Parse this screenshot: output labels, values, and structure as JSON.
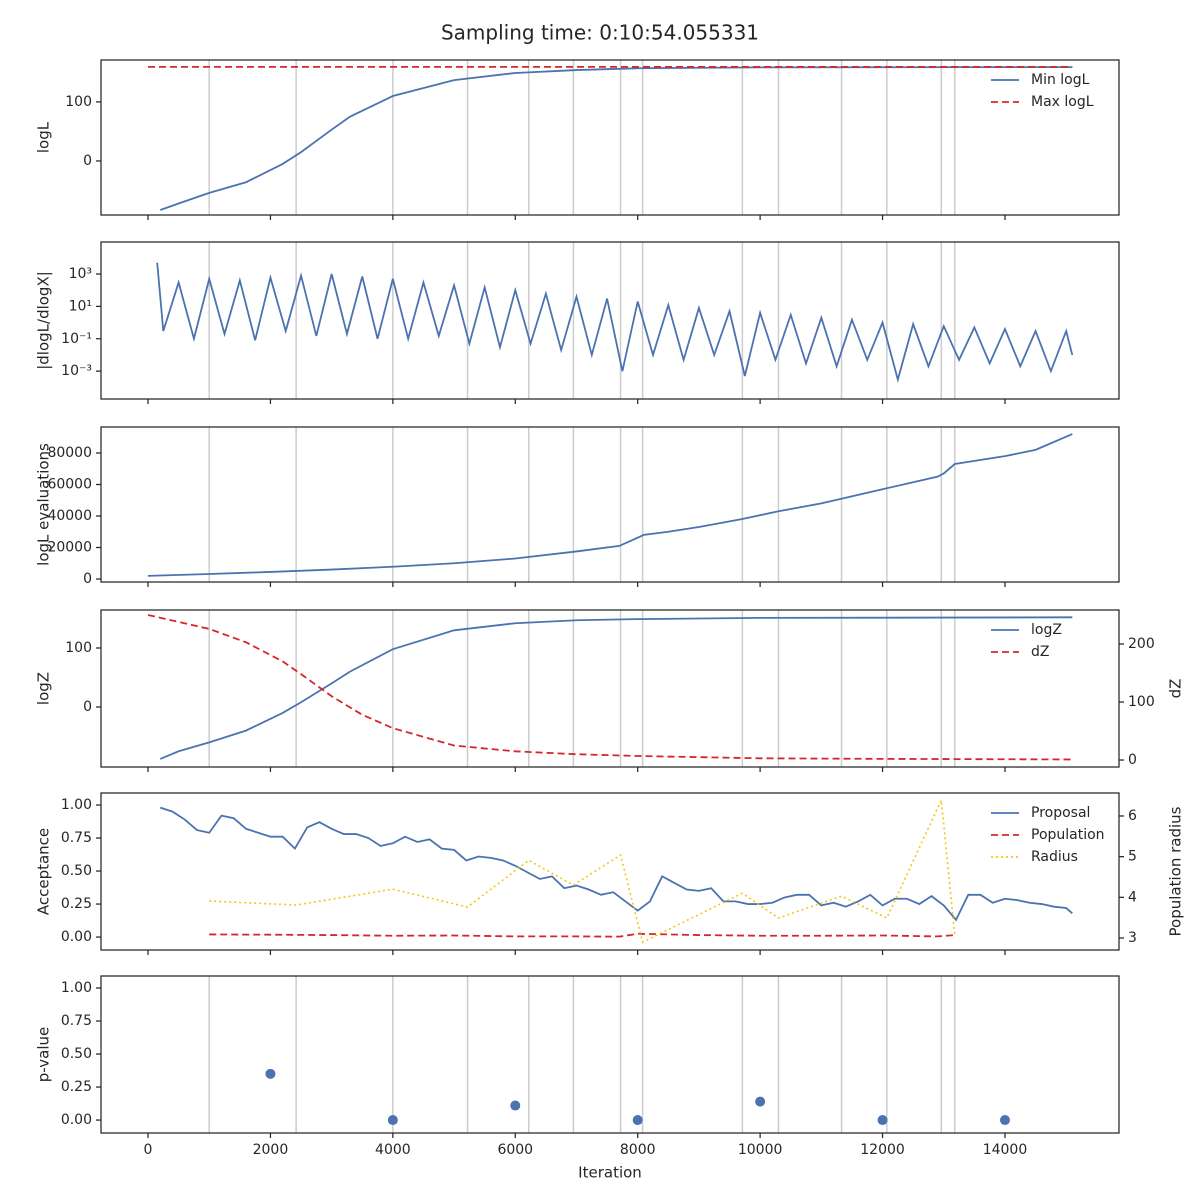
{
  "title": "Sampling time: 0:10:54.055331",
  "chart_data": [
    {
      "type": "line",
      "ylabel": "logL",
      "legend": "upper right",
      "xlim": [
        -768,
        15863
      ],
      "ylim": [
        -91.5,
        171
      ],
      "yticks": [
        0,
        100
      ],
      "vlines": [
        1000,
        2420,
        4000,
        5220,
        6220,
        6950,
        7720,
        8080,
        9710,
        10300,
        11330,
        12070,
        12960,
        13180
      ],
      "series": [
        {
          "name": "Min logL",
          "color": "#4c72b0",
          "style": "solid",
          "x": [
            200,
            500,
            1000,
            1600,
            2200,
            2500,
            3000,
            3300,
            4000,
            5000,
            6000,
            7000,
            8000,
            10000,
            15100
          ],
          "values": [
            -83,
            -72,
            -54,
            -36,
            -5,
            15,
            53,
            75,
            110,
            137,
            149,
            154,
            157,
            158.5,
            159
          ]
        },
        {
          "name": "Max logL",
          "color": "#d62728",
          "style": "dashed",
          "x": [
            0,
            15100
          ],
          "values": [
            159.3,
            159.3
          ]
        }
      ]
    },
    {
      "type": "line",
      "ylabel": "|dlogL/dlogX|",
      "log_y": true,
      "xlim": [
        -768,
        15863
      ],
      "ylim": [
        1.9e-05,
        95000
      ],
      "yticks": [
        {
          "value": 0.001,
          "label": "10⁻³"
        },
        {
          "value": 0.1,
          "label": "10⁻¹"
        },
        {
          "value": 10,
          "label": "10¹"
        },
        {
          "value": 1000,
          "label": "10³"
        }
      ],
      "vlines": [
        1000,
        2420,
        4000,
        5220,
        6220,
        6950,
        7720,
        8080,
        9710,
        10300,
        11330,
        12070,
        12960,
        13180
      ],
      "series": [
        {
          "color": "#4c72b0",
          "style": "solid",
          "x": [
            150,
            250,
            500,
            750,
            1000,
            1250,
            1500,
            1750,
            2000,
            2250,
            2500,
            2750,
            3000,
            3250,
            3500,
            3750,
            4000,
            4250,
            4500,
            4750,
            5000,
            5250,
            5500,
            5750,
            6000,
            6250,
            6500,
            6750,
            7000,
            7250,
            7500,
            7750,
            8000,
            8250,
            8500,
            8750,
            9000,
            9250,
            9500,
            9750,
            10000,
            10250,
            10500,
            10750,
            11000,
            11250,
            11500,
            11750,
            12000,
            12250,
            12500,
            12750,
            13000,
            13250,
            13500,
            13750,
            14000,
            14250,
            14500,
            14750,
            15000,
            15100
          ],
          "values": [
            5000,
            0.3,
            300,
            0.1,
            500,
            0.2,
            400,
            0.08,
            600,
            0.3,
            800,
            0.15,
            1000,
            0.2,
            700,
            0.1,
            500,
            0.1,
            300,
            0.15,
            200,
            0.05,
            150,
            0.03,
            100,
            0.05,
            60,
            0.02,
            40,
            0.01,
            30,
            0.001,
            20,
            0.01,
            12,
            0.005,
            8,
            0.01,
            5,
            0.0005,
            4,
            0.005,
            3,
            0.003,
            2,
            0.002,
            1.5,
            0.005,
            1,
            0.0003,
            0.8,
            0.002,
            0.6,
            0.005,
            0.5,
            0.003,
            0.4,
            0.002,
            0.3,
            0.001,
            0.3,
            0.01
          ]
        }
      ]
    },
    {
      "type": "line",
      "ylabel": "logL evaluations",
      "xlim": [
        -768,
        15863
      ],
      "ylim": [
        -1900,
        96500
      ],
      "yticks": [
        0,
        20000,
        40000,
        60000,
        80000
      ],
      "vlines": [
        1000,
        2420,
        4000,
        5220,
        6220,
        6950,
        7720,
        8080,
        9710,
        10300,
        11330,
        12070,
        12960,
        13180
      ],
      "series": [
        {
          "color": "#4c72b0",
          "style": "solid",
          "x": [
            0,
            1000,
            2000,
            3000,
            4000,
            5000,
            6000,
            7000,
            7700,
            7900,
            8100,
            8500,
            9000,
            9700,
            10300,
            11000,
            12000,
            12900,
            13000,
            13180,
            14000,
            14500,
            15100
          ],
          "values": [
            2000,
            3200,
            4500,
            6000,
            7800,
            10000,
            13000,
            17500,
            21000,
            24500,
            28000,
            30000,
            33000,
            38000,
            43000,
            48000,
            57000,
            65000,
            67000,
            73000,
            78000,
            82000,
            92000
          ]
        }
      ]
    },
    {
      "type": "line",
      "ylabel": "logZ",
      "y2label": "dZ",
      "legend": "upper right",
      "xlim": [
        -768,
        15863
      ],
      "ylim": [
        -101.7,
        164.4
      ],
      "yticks": [
        0,
        100
      ],
      "y2lim": [
        -12,
        258.6
      ],
      "y2ticks": [
        0,
        100,
        200
      ],
      "vlines": [
        1000,
        2420,
        4000,
        5220,
        6220,
        6950,
        7720,
        8080,
        9710,
        10300,
        11330,
        12070,
        12960,
        13180
      ],
      "series": [
        {
          "name": "logZ",
          "color": "#4c72b0",
          "style": "solid",
          "x": [
            200,
            500,
            1000,
            1600,
            2200,
            2500,
            3000,
            3300,
            4000,
            5000,
            6000,
            7000,
            8000,
            10000,
            15100
          ],
          "values": [
            -88,
            -75,
            -60,
            -40,
            -10,
            8,
            40,
            60,
            98,
            130,
            142,
            147,
            149,
            151,
            152
          ]
        },
        {
          "name": "dZ",
          "color": "#d62728",
          "style": "dashed",
          "axis": "y2",
          "x": [
            0,
            1000,
            1600,
            2200,
            2500,
            3000,
            3500,
            4000,
            5000,
            6000,
            7000,
            8000,
            10000,
            12000,
            15100
          ],
          "values": [
            250,
            226,
            203,
            170,
            148,
            110,
            78,
            55,
            25,
            15,
            10,
            7,
            3,
            2,
            1
          ]
        }
      ]
    },
    {
      "type": "line",
      "ylabel": "Acceptance",
      "y2label": "Population radius",
      "legend": "upper right",
      "xlim": [
        -768,
        15863
      ],
      "ylim": [
        -0.098,
        1.091
      ],
      "yticks": [
        {
          "value": 0,
          "label": "0.00"
        },
        {
          "value": 0.25,
          "label": "0.25"
        },
        {
          "value": 0.5,
          "label": "0.50"
        },
        {
          "value": 0.75,
          "label": "0.75"
        },
        {
          "value": 1,
          "label": "1.00"
        }
      ],
      "y2lim": [
        2.705,
        6.565
      ],
      "y2ticks": [
        3,
        4,
        5,
        6
      ],
      "series": [
        {
          "name": "Proposal",
          "color": "#4c72b0",
          "style": "solid",
          "x": [
            200,
            400,
            600,
            800,
            1000,
            1200,
            1400,
            1600,
            1800,
            2000,
            2200,
            2400,
            2600,
            2800,
            3000,
            3200,
            3400,
            3600,
            3800,
            4000,
            4200,
            4400,
            4600,
            4800,
            5000,
            5200,
            5400,
            5600,
            5800,
            6000,
            6200,
            6400,
            6600,
            6800,
            7000,
            7200,
            7400,
            7600,
            7800,
            8000,
            8200,
            8400,
            8600,
            8800,
            9000,
            9200,
            9400,
            9600,
            9800,
            10000,
            10200,
            10400,
            10600,
            10800,
            11000,
            11200,
            11400,
            11600,
            11800,
            12000,
            12200,
            12400,
            12600,
            12800,
            13000,
            13200,
            13400,
            13600,
            13800,
            14000,
            14200,
            14400,
            14600,
            14800,
            15000,
            15100
          ],
          "values": [
            0.98,
            0.95,
            0.89,
            0.81,
            0.79,
            0.92,
            0.9,
            0.82,
            0.79,
            0.76,
            0.76,
            0.67,
            0.83,
            0.87,
            0.82,
            0.78,
            0.78,
            0.75,
            0.69,
            0.71,
            0.76,
            0.72,
            0.74,
            0.67,
            0.66,
            0.58,
            0.61,
            0.6,
            0.58,
            0.54,
            0.49,
            0.44,
            0.46,
            0.37,
            0.39,
            0.36,
            0.32,
            0.34,
            0.27,
            0.2,
            0.27,
            0.46,
            0.41,
            0.36,
            0.35,
            0.37,
            0.27,
            0.27,
            0.25,
            0.25,
            0.26,
            0.3,
            0.32,
            0.32,
            0.24,
            0.26,
            0.23,
            0.27,
            0.32,
            0.24,
            0.29,
            0.29,
            0.25,
            0.31,
            0.24,
            0.13,
            0.32,
            0.32,
            0.26,
            0.29,
            0.28,
            0.26,
            0.25,
            0.23,
            0.22,
            0.18
          ]
        },
        {
          "name": "Population",
          "color": "#d62728",
          "style": "dashed",
          "x": [
            1000,
            2000,
            3000,
            4000,
            5000,
            6000,
            7000,
            7700,
            8000,
            9000,
            10000,
            11000,
            12000,
            12900,
            13180
          ],
          "values": [
            0.02,
            0.018,
            0.015,
            0.01,
            0.012,
            0.005,
            0.005,
            0.003,
            0.025,
            0.015,
            0.01,
            0.01,
            0.012,
            0.005,
            0.015
          ]
        },
        {
          "name": "Radius",
          "color": "#f5c518",
          "style": "dotted",
          "axis": "y2",
          "x": [
            1000,
            2420,
            4000,
            5220,
            6220,
            6950,
            7720,
            8080,
            9710,
            10300,
            11330,
            12070,
            12960,
            13180
          ],
          "values": [
            3.91,
            3.81,
            4.2,
            3.76,
            4.91,
            4.3,
            5.04,
            2.9,
            4.1,
            3.49,
            4.03,
            3.49,
            6.39,
            3.07
          ]
        }
      ]
    },
    {
      "type": "scatter",
      "ylabel": "p-value",
      "xlabel": "Iteration",
      "xlim": [
        -768,
        15863
      ],
      "ylim": [
        -0.098,
        1.091
      ],
      "yticks": [
        {
          "value": 0,
          "label": "0.00"
        },
        {
          "value": 0.25,
          "label": "0.25"
        },
        {
          "value": 0.5,
          "label": "0.50"
        },
        {
          "value": 0.75,
          "label": "0.75"
        },
        {
          "value": 1,
          "label": "1.00"
        }
      ],
      "xticks": [
        0,
        2000,
        4000,
        6000,
        8000,
        10000,
        12000,
        14000
      ],
      "vlines": [
        1000,
        2420,
        4000,
        5220,
        6220,
        6950,
        7720,
        8080,
        9710,
        10300,
        11330,
        12070,
        12960,
        13180
      ],
      "series": [
        {
          "color": "#4c72b0",
          "x": [
            2000,
            4000,
            6000,
            8000,
            10000,
            12000,
            14000
          ],
          "values": [
            0.35,
            0,
            0.11,
            0,
            0.14,
            0,
            0
          ]
        }
      ]
    }
  ]
}
